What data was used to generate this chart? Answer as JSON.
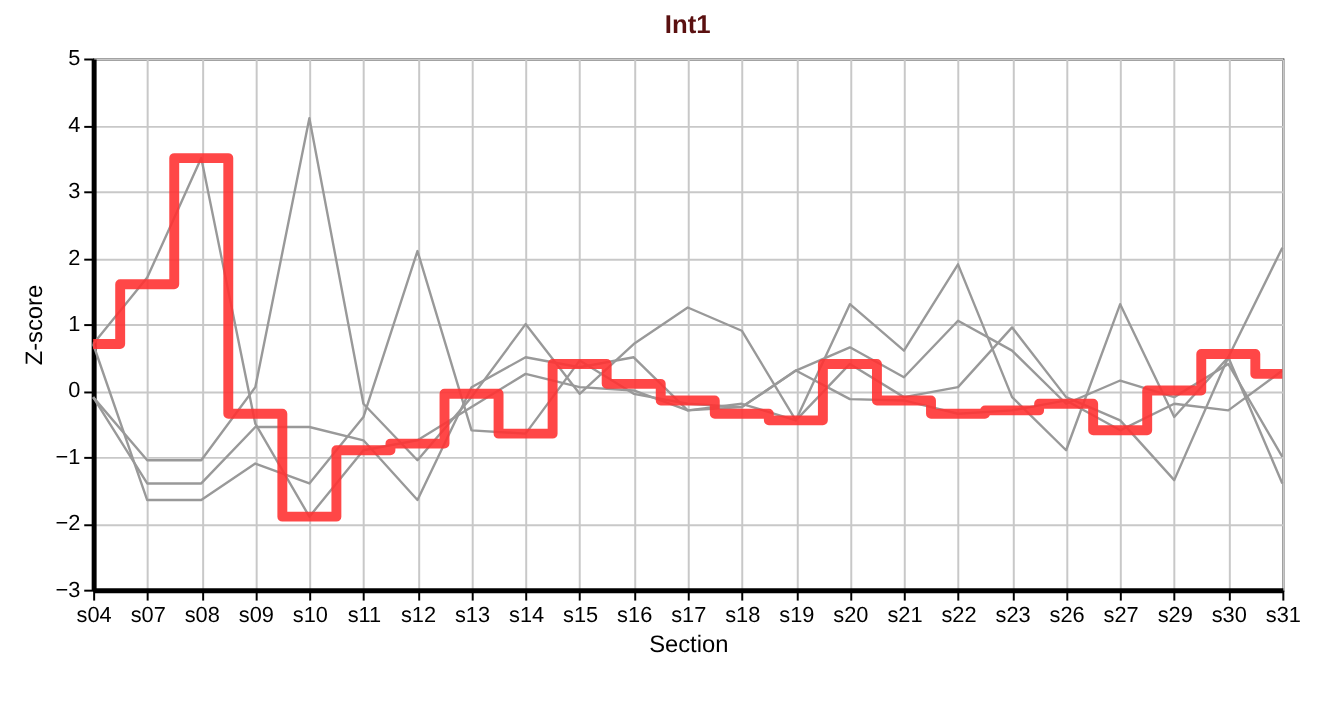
{
  "chart_data": {
    "type": "line",
    "title": "Int1",
    "xlabel": "Section",
    "ylabel": "Z-score",
    "categories": [
      "s04",
      "s07",
      "s08",
      "s09",
      "s10",
      "s11",
      "s12",
      "s13",
      "s14",
      "s15",
      "s16",
      "s17",
      "s18",
      "s19",
      "s20",
      "s21",
      "s22",
      "s23",
      "s26",
      "s27",
      "s29",
      "s30",
      "s31"
    ],
    "ylim": [
      -3,
      5
    ],
    "yticks": [
      -3,
      -2,
      -1,
      0,
      1,
      2,
      3,
      4,
      5
    ],
    "grid": true,
    "marker": "none",
    "line_style": "solid",
    "series": [
      {
        "color": "#999999",
        "values": [
          0.7,
          1.7,
          3.5,
          -0.5,
          -1.9,
          -0.9,
          -0.75,
          -0.25,
          0.25,
          0.05,
          0.0,
          -0.3,
          -0.25,
          0.3,
          0.65,
          0.2,
          1.05,
          0.6,
          -0.2,
          0.15,
          -0.1,
          0.4,
          -1.0
        ]
      },
      {
        "color": "#999999",
        "values": [
          -0.1,
          -1.05,
          -1.05,
          0.05,
          4.1,
          -0.2,
          -1.05,
          -0.1,
          1.0,
          -0.05,
          0.7,
          1.25,
          0.9,
          -0.45,
          1.3,
          0.6,
          1.9,
          -0.1,
          -0.9,
          1.3,
          -0.4,
          0.5,
          2.15
        ]
      },
      {
        "color": "#999999",
        "values": [
          -0.1,
          -1.4,
          -1.4,
          -0.55,
          -0.55,
          -0.75,
          -1.65,
          0.05,
          0.5,
          0.35,
          0.5,
          -0.3,
          -0.2,
          -0.45,
          0.4,
          -0.1,
          0.05,
          0.95,
          -0.1,
          -0.45,
          -1.35,
          0.5,
          -1.4
        ]
      },
      {
        "color": "#999999",
        "values": [
          0.7,
          -1.65,
          -1.65,
          -1.1,
          -1.4,
          -0.4,
          2.1,
          -0.6,
          -0.65,
          0.45,
          -0.05,
          -0.2,
          -0.25,
          0.3,
          -0.13,
          -0.15,
          -0.35,
          -0.3,
          -0.15,
          -0.6,
          -0.2,
          -0.3,
          0.3
        ]
      },
      {
        "type": "step",
        "color": "#ff3333",
        "values": [
          0.7,
          1.6,
          3.5,
          -0.35,
          -1.9,
          -0.9,
          -0.8,
          -0.05,
          -0.65,
          0.4,
          0.1,
          -0.15,
          -0.35,
          -0.45,
          0.4,
          -0.15,
          -0.35,
          -0.3,
          -0.2,
          -0.6,
          0.0,
          0.55,
          0.25
        ]
      }
    ]
  }
}
